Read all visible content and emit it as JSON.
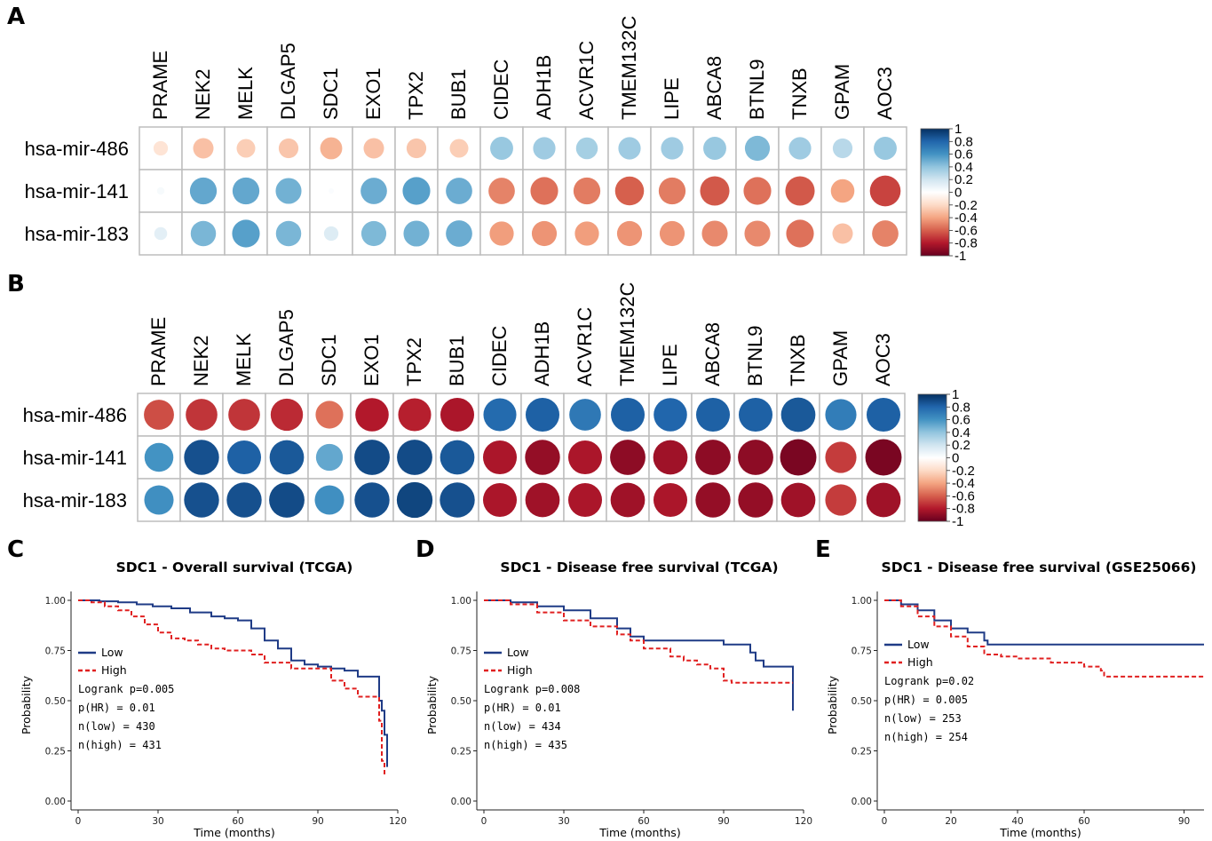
{
  "panel_labels": {
    "A": "A",
    "B": "B",
    "C": "C",
    "D": "D",
    "E": "E"
  },
  "colorbar_ticks": [
    "1",
    "0.8",
    "0.6",
    "0.4",
    "0.2",
    "0",
    "-0.2",
    "-0.4",
    "-0.6",
    "-0.8",
    "-1"
  ],
  "colors": {
    "negative": "#67001f",
    "neutral": "#ffffff",
    "positive": "#053061",
    "low_curve": "#1f3b86",
    "high_curve": "#e02020",
    "grid_border": "#bdbdbd"
  },
  "chart_data": [
    {
      "type": "heatmap",
      "panel": "A",
      "columns": [
        "PRAME",
        "NEK2",
        "MELK",
        "DLGAP5",
        "SDC1",
        "EXO1",
        "TPX2",
        "BUB1",
        "CIDEC",
        "ADH1B",
        "ACVR1C",
        "TMEM132C",
        "LIPE",
        "ABCA8",
        "BTNL9",
        "TNXB",
        "GPAM",
        "AOC3"
      ],
      "rows": [
        "hsa-mir-486",
        "hsa-mir-141",
        "hsa-mir-183"
      ],
      "values": [
        [
          -0.15,
          -0.3,
          -0.25,
          -0.28,
          -0.35,
          -0.3,
          -0.28,
          -0.25,
          0.38,
          0.36,
          0.34,
          0.36,
          0.36,
          0.38,
          0.45,
          0.36,
          0.28,
          0.38
        ],
        [
          0.04,
          0.52,
          0.52,
          0.48,
          0.02,
          0.5,
          0.55,
          0.5,
          -0.5,
          -0.55,
          -0.52,
          -0.6,
          -0.52,
          -0.62,
          -0.55,
          -0.62,
          -0.4,
          -0.68
        ],
        [
          0.12,
          0.46,
          0.55,
          0.46,
          0.15,
          0.45,
          0.48,
          0.5,
          -0.42,
          -0.45,
          -0.42,
          -0.45,
          -0.45,
          -0.48,
          -0.48,
          -0.55,
          -0.3,
          -0.5
        ]
      ],
      "scale": [
        -1,
        1
      ]
    },
    {
      "type": "heatmap",
      "panel": "B",
      "columns": [
        "PRAME",
        "NEK2",
        "MELK",
        "DLGAP5",
        "SDC1",
        "EXO1",
        "TPX2",
        "BUB1",
        "CIDEC",
        "ADH1B",
        "ACVR1C",
        "TMEM132C",
        "LIPE",
        "ABCA8",
        "BTNL9",
        "TNXB",
        "GPAM",
        "AOC3"
      ],
      "rows": [
        "hsa-mir-486",
        "hsa-mir-141",
        "hsa-mir-183"
      ],
      "values": [
        [
          -0.65,
          -0.72,
          -0.72,
          -0.75,
          -0.55,
          -0.8,
          -0.78,
          -0.82,
          0.78,
          0.82,
          0.72,
          0.82,
          0.8,
          0.82,
          0.82,
          0.85,
          0.7,
          0.82
        ],
        [
          0.6,
          0.88,
          0.82,
          0.85,
          0.52,
          0.9,
          0.9,
          0.85,
          -0.82,
          -0.88,
          -0.82,
          -0.9,
          -0.85,
          -0.9,
          -0.9,
          -0.95,
          -0.7,
          -0.95
        ],
        [
          0.62,
          0.88,
          0.88,
          0.9,
          0.62,
          0.88,
          0.92,
          0.88,
          -0.82,
          -0.85,
          -0.82,
          -0.85,
          -0.82,
          -0.88,
          -0.88,
          -0.85,
          -0.7,
          -0.85
        ]
      ],
      "scale": [
        -1,
        1
      ]
    },
    {
      "type": "line",
      "panel": "C",
      "title": "SDC1 - Overall survival (TCGA)",
      "xlabel": "Time (months)",
      "ylabel": "Probability",
      "xlim": [
        0,
        120
      ],
      "ylim": [
        0,
        1
      ],
      "xticks": [
        "0",
        "30",
        "60",
        "90",
        "120"
      ],
      "yticks": [
        "0.00",
        "0.25",
        "0.50",
        "0.75",
        "1.00"
      ],
      "legend_position": "left",
      "legend": [
        "Low",
        "High"
      ],
      "annotations": [
        "Logrank p=0.005",
        "p(HR) = 0.01",
        "n(low) = 430",
        "n(high) = 431"
      ],
      "series": [
        {
          "name": "Low",
          "style": "solid",
          "x": [
            0,
            8,
            15,
            22,
            28,
            35,
            42,
            50,
            55,
            60,
            65,
            70,
            75,
            80,
            85,
            90,
            95,
            100,
            105,
            110,
            113,
            114,
            115,
            116
          ],
          "y": [
            1.0,
            0.995,
            0.99,
            0.98,
            0.97,
            0.96,
            0.94,
            0.92,
            0.91,
            0.9,
            0.86,
            0.8,
            0.76,
            0.7,
            0.68,
            0.67,
            0.66,
            0.65,
            0.62,
            0.62,
            0.5,
            0.45,
            0.33,
            0.17
          ]
        },
        {
          "name": "High",
          "style": "dashed",
          "x": [
            0,
            5,
            10,
            15,
            20,
            25,
            30,
            35,
            40,
            45,
            50,
            55,
            60,
            65,
            70,
            75,
            80,
            90,
            95,
            100,
            105,
            110,
            113,
            114,
            115
          ],
          "y": [
            1.0,
            0.99,
            0.97,
            0.95,
            0.92,
            0.88,
            0.84,
            0.81,
            0.8,
            0.78,
            0.76,
            0.75,
            0.75,
            0.73,
            0.69,
            0.69,
            0.66,
            0.66,
            0.6,
            0.56,
            0.52,
            0.52,
            0.4,
            0.2,
            0.13
          ]
        }
      ]
    },
    {
      "type": "line",
      "panel": "D",
      "title": "SDC1 - Disease free survival (TCGA)",
      "xlabel": "Time (months)",
      "ylabel": "Probability",
      "xlim": [
        0,
        120
      ],
      "ylim": [
        0,
        1
      ],
      "xticks": [
        "0",
        "30",
        "60",
        "90",
        "120"
      ],
      "yticks": [
        "0.00",
        "0.25",
        "0.50",
        "0.75",
        "1.00"
      ],
      "legend_position": "left",
      "legend": [
        "Low",
        "High"
      ],
      "annotations": [
        "Logrank p=0.008",
        "p(HR) = 0.01",
        "n(low) = 434",
        "n(high) = 435"
      ],
      "series": [
        {
          "name": "Low",
          "style": "solid",
          "x": [
            0,
            10,
            20,
            30,
            40,
            50,
            55,
            60,
            70,
            80,
            90,
            100,
            102,
            105,
            110,
            115,
            116
          ],
          "y": [
            1.0,
            0.99,
            0.97,
            0.95,
            0.91,
            0.86,
            0.82,
            0.8,
            0.8,
            0.8,
            0.78,
            0.74,
            0.7,
            0.67,
            0.67,
            0.67,
            0.45
          ]
        },
        {
          "name": "High",
          "style": "dashed",
          "x": [
            0,
            10,
            20,
            30,
            40,
            50,
            55,
            60,
            70,
            75,
            80,
            85,
            90,
            93,
            100,
            116
          ],
          "y": [
            1.0,
            0.98,
            0.94,
            0.9,
            0.87,
            0.83,
            0.8,
            0.76,
            0.72,
            0.7,
            0.68,
            0.66,
            0.6,
            0.59,
            0.59,
            0.59
          ]
        }
      ]
    },
    {
      "type": "line",
      "panel": "E",
      "title": "SDC1 - Disease free survival (GSE25066)",
      "xlabel": "Time (months)",
      "ylabel": "Probability",
      "xlim": [
        0,
        96
      ],
      "ylim": [
        0,
        1
      ],
      "xticks": [
        "0",
        "20",
        "40",
        "60",
        "90"
      ],
      "yticks": [
        "0.00",
        "0.25",
        "0.50",
        "0.75",
        "1.00"
      ],
      "legend_position": "left",
      "legend": [
        "Low",
        "High"
      ],
      "annotations": [
        "Logrank p=0.02",
        "p(HR) = 0.005",
        "n(low) = 253",
        "n(high) = 254"
      ],
      "series": [
        {
          "name": "Low",
          "style": "solid",
          "x": [
            0,
            5,
            10,
            15,
            20,
            25,
            30,
            31,
            40,
            60,
            80,
            96
          ],
          "y": [
            1.0,
            0.98,
            0.95,
            0.9,
            0.86,
            0.84,
            0.8,
            0.78,
            0.78,
            0.78,
            0.78,
            0.78
          ]
        },
        {
          "name": "High",
          "style": "dashed",
          "x": [
            0,
            5,
            10,
            15,
            20,
            25,
            30,
            35,
            40,
            50,
            60,
            65,
            66,
            75,
            96
          ],
          "y": [
            1.0,
            0.97,
            0.92,
            0.87,
            0.82,
            0.77,
            0.73,
            0.72,
            0.71,
            0.69,
            0.67,
            0.65,
            0.62,
            0.62,
            0.62
          ]
        }
      ]
    }
  ]
}
